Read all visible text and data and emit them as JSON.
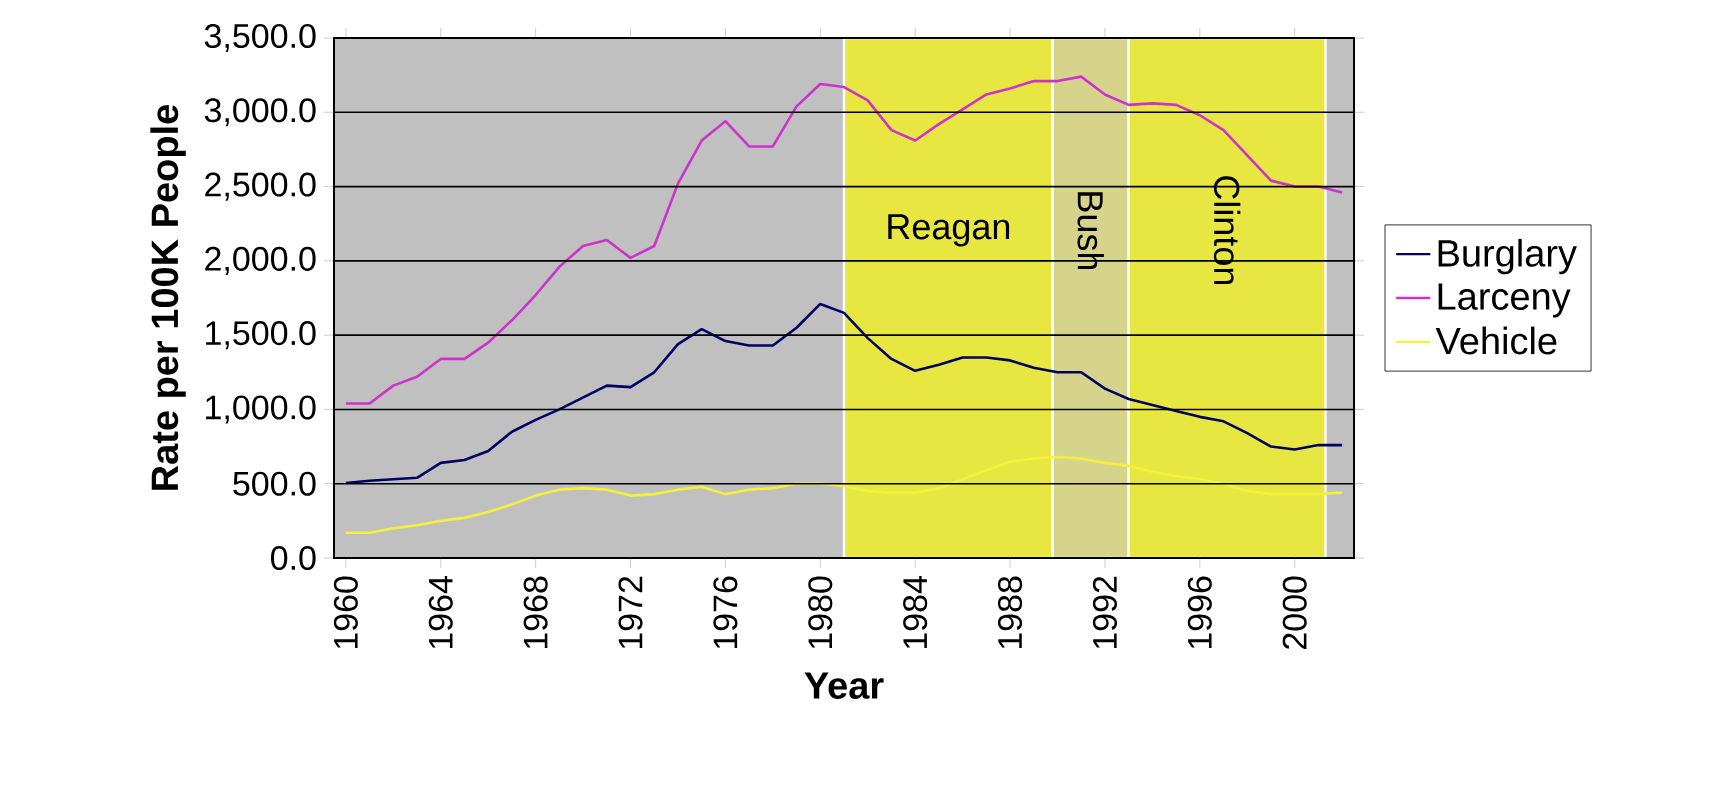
{
  "chart_data": {
    "type": "line",
    "xlabel": "Year",
    "ylabel": "Rate per 100K People",
    "x": [
      1960,
      1961,
      1962,
      1963,
      1964,
      1965,
      1966,
      1967,
      1968,
      1969,
      1970,
      1971,
      1972,
      1973,
      1974,
      1975,
      1976,
      1977,
      1978,
      1979,
      1980,
      1981,
      1982,
      1983,
      1984,
      1985,
      1986,
      1987,
      1988,
      1989,
      1990,
      1991,
      1992,
      1993,
      1994,
      1995,
      1996,
      1997,
      1998,
      1999,
      2000,
      2001,
      2002
    ],
    "series": [
      {
        "name": "Burglary",
        "color": "#000066",
        "values": [
          505,
          520,
          530,
          540,
          640,
          660,
          720,
          850,
          930,
          1000,
          1080,
          1160,
          1150,
          1250,
          1440,
          1540,
          1460,
          1430,
          1430,
          1550,
          1710,
          1650,
          1480,
          1340,
          1260,
          1300,
          1350,
          1350,
          1330,
          1280,
          1250,
          1250,
          1140,
          1070,
          1030,
          990,
          950,
          920,
          840,
          750,
          730,
          760,
          760
        ]
      },
      {
        "name": "Larceny",
        "color": "#cc33cc",
        "values": [
          1040,
          1040,
          1160,
          1220,
          1340,
          1340,
          1450,
          1600,
          1770,
          1960,
          2100,
          2140,
          2020,
          2100,
          2520,
          2810,
          2940,
          2770,
          2770,
          3040,
          3190,
          3170,
          3080,
          2880,
          2810,
          2920,
          3020,
          3120,
          3160,
          3210,
          3210,
          3240,
          3120,
          3050,
          3060,
          3050,
          2980,
          2880,
          2710,
          2540,
          2500,
          2500,
          2460
        ]
      },
      {
        "name": "Vehicle",
        "color": "#f2f23a",
        "values": [
          170,
          170,
          200,
          220,
          250,
          270,
          310,
          360,
          420,
          460,
          470,
          460,
          420,
          430,
          460,
          480,
          430,
          460,
          470,
          500,
          500,
          485,
          450,
          440,
          440,
          470,
          530,
          590,
          650,
          670,
          680,
          670,
          640,
          620,
          580,
          550,
          530,
          500,
          450,
          430,
          430,
          430,
          440
        ]
      }
    ],
    "xlim": [
      1959.5,
      2002.5
    ],
    "xticks": [
      1960,
      1964,
      1968,
      1972,
      1976,
      1980,
      1984,
      1988,
      1992,
      1996,
      2000
    ],
    "ylim": [
      0,
      3500
    ],
    "yticks": [
      {
        "value": 0,
        "label": "0.0"
      },
      {
        "value": 500,
        "label": "500.0"
      },
      {
        "value": 1000,
        "label": "1,000.0"
      },
      {
        "value": 1500,
        "label": "1,500.0"
      },
      {
        "value": 2000,
        "label": "2,000.0"
      },
      {
        "value": 2500,
        "label": "2,500.0"
      },
      {
        "value": 3000,
        "label": "3,000.0"
      },
      {
        "value": 3500,
        "label": "3,500.0"
      }
    ],
    "bands": [
      {
        "axis": "x",
        "from": 1981,
        "to": 1989.8,
        "label": "Reagan",
        "color": "#e8e640"
      },
      {
        "axis": "x",
        "from": 1989.8,
        "to": 1993,
        "label": "Bush",
        "color": "#d6d48a"
      },
      {
        "axis": "x",
        "from": 1993,
        "to": 2001.3,
        "label": "Clinton",
        "color": "#e8e640"
      }
    ],
    "grid": "y",
    "legend": "right",
    "marker": "none",
    "line_style": "solid"
  }
}
